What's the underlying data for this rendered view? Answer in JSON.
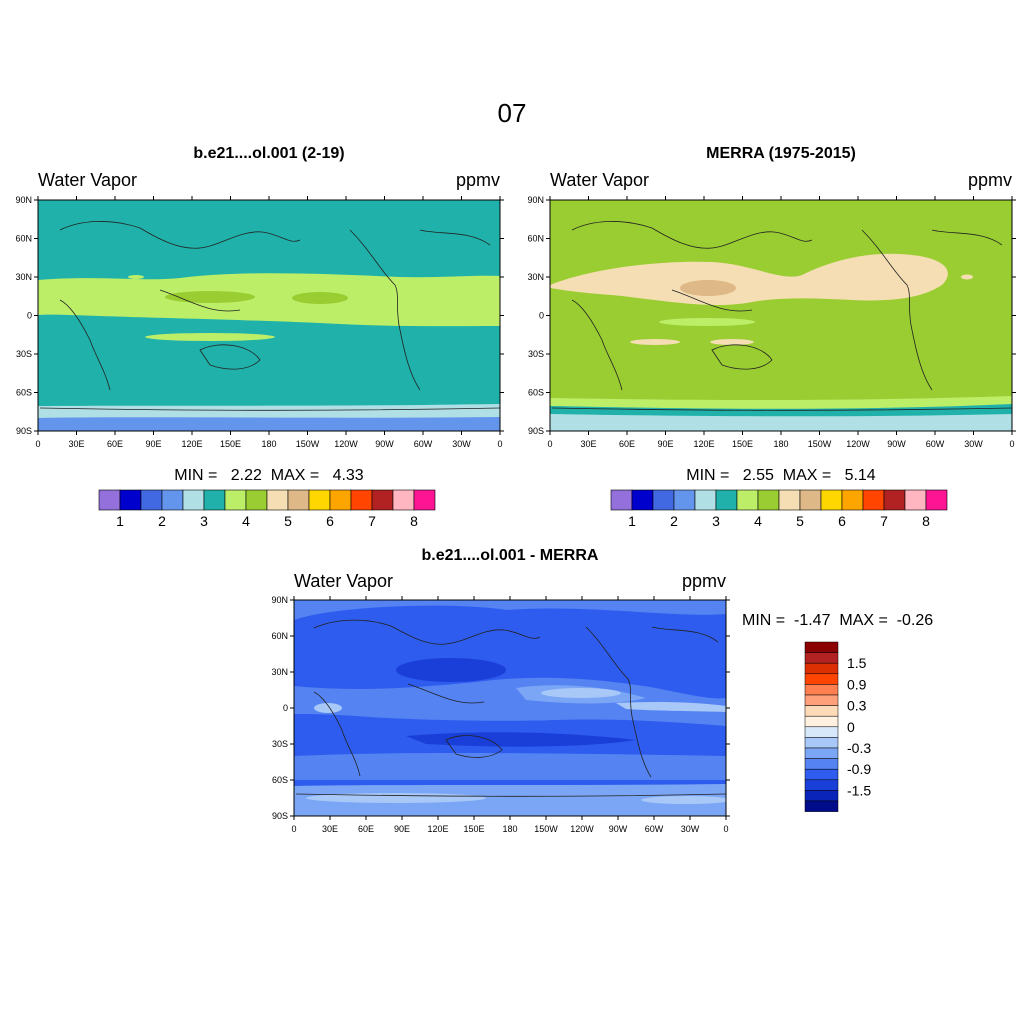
{
  "page_title": "07",
  "panels": [
    {
      "title": "b.e21....ol.001 (2-19)",
      "variable": "Water Vapor",
      "units": "ppmv",
      "stats_label": "MIN =   2.22  MAX =   4.33"
    },
    {
      "title": "MERRA (1975-2015)",
      "variable": "Water Vapor",
      "units": "ppmv",
      "stats_label": "MIN =   2.55  MAX =   5.14"
    },
    {
      "title": "b.e21....ol.001 - MERRA",
      "variable": "Water Vapor",
      "units": "ppmv",
      "stats_label": "MIN =  -1.47  MAX =  -0.26"
    }
  ],
  "axes": {
    "lon_labels": [
      "0",
      "30E",
      "60E",
      "90E",
      "120E",
      "150E",
      "180",
      "150W",
      "120W",
      "90W",
      "60W",
      "30W",
      "0"
    ],
    "lat_labels": [
      "90N",
      "60N",
      "30N",
      "0",
      "30S",
      "60S",
      "90S"
    ]
  },
  "abs_colorbar": {
    "colors": [
      "#9370DB",
      "#0000CD",
      "#4169E1",
      "#6495ED",
      "#B0E0E6",
      "#20B2AA",
      "#BCEE68",
      "#9ACD32",
      "#F5DEB3",
      "#DEB887",
      "#FFD700",
      "#FFA500",
      "#FF4500",
      "#B22222",
      "#FFB6C1",
      "#FF1493"
    ],
    "labels": [
      "1",
      "2",
      "3",
      "4",
      "5",
      "6",
      "7",
      "8"
    ]
  },
  "diff_colorbar": {
    "colors": [
      "#8B0000",
      "#B22222",
      "#DC2F02",
      "#FF4500",
      "#FF7F50",
      "#FFA07A",
      "#FFDAB9",
      "#FFF0E0",
      "#D6E8FA",
      "#A8C8F8",
      "#7BA6F5",
      "#5583F2",
      "#2E5CEE",
      "#1A3FD9",
      "#0A23B8",
      "#000C8A"
    ],
    "labels": [
      "1.5",
      "0.9",
      "0.3",
      "0",
      "-0.3",
      "-0.9",
      "-1.5"
    ]
  },
  "colors": {
    "left_base": "#20B2AA",
    "left_band": "#BCEE68",
    "left_core": "#9ACD32",
    "left_polar1": "#B0E0E6",
    "left_polar2": "#6495ED",
    "right_base": "#9ACD32",
    "right_band": "#F5DEB3",
    "right_core": "#DEB887",
    "right_low": "#BCEE68",
    "right_polar1": "#20B2AA",
    "right_polar2": "#B0E0E6",
    "diff_base": "#2E5CEE",
    "diff_dark": "#1A3FD9",
    "diff_light": "#5583F2",
    "diff_lighter": "#7BA6F5",
    "diff_pale": "#A8C8F8"
  }
}
